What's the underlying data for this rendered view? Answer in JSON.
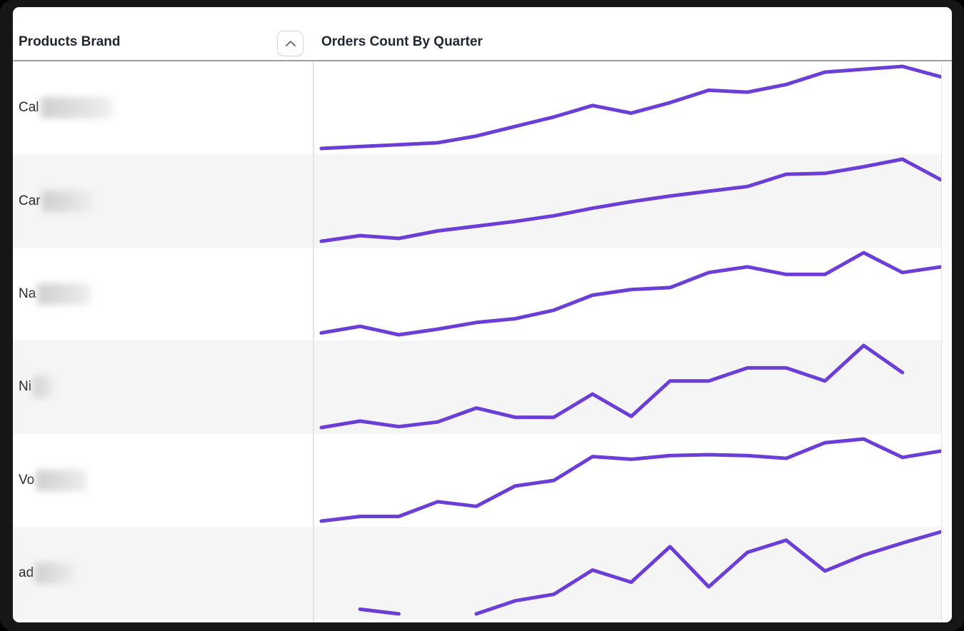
{
  "header": {
    "products_brand": "Products Brand",
    "orders_count": "Orders Count By Quarter",
    "sort_icon": "chevron-up-icon"
  },
  "table": {
    "rows": [
      {
        "brand_prefix": "Cal",
        "brand_redacted": true,
        "redaction_width": 100
      },
      {
        "brand_prefix": "Car",
        "brand_redacted": true,
        "redaction_width": 70
      },
      {
        "brand_prefix": "Na",
        "brand_redacted": true,
        "redaction_width": 75
      },
      {
        "brand_prefix": "Ni",
        "brand_redacted": true,
        "redaction_width": 30
      },
      {
        "brand_prefix": "Vo",
        "brand_redacted": true,
        "redaction_width": 72
      },
      {
        "brand_prefix": "ad",
        "brand_redacted": true,
        "redaction_width": 56
      }
    ]
  },
  "colors": {
    "sparkline": "#6c3ed8",
    "row_stripe": "#f5f5f6",
    "header_border": "#99a0a8",
    "column_divider": "#e3e3e6",
    "header_text": "#1f2733",
    "body_text": "#26282d",
    "frame": "#161616"
  },
  "chart_data": {
    "type": "line",
    "title": "Orders Count By Quarter",
    "sparkline": true,
    "x_axis": "quarter index (1-17, tick labels not shown on screen)",
    "y_axis": "orders count (values estimated from line heights, no scale shown)",
    "grid": false,
    "legend": false,
    "series": [
      {
        "name": "Cal… (redacted)",
        "values": [
          7,
          9,
          11,
          13,
          20,
          30,
          40,
          52,
          44,
          55,
          68,
          66,
          74,
          87,
          90,
          93,
          82
        ]
      },
      {
        "name": "Car… (redacted)",
        "values": [
          5,
          11,
          8,
          16,
          21,
          26,
          32,
          40,
          47,
          53,
          58,
          63,
          76,
          77,
          84,
          92,
          70
        ]
      },
      {
        "name": "Na… (redacted)",
        "values": [
          8,
          15,
          6,
          12,
          19,
          23,
          32,
          48,
          54,
          56,
          72,
          78,
          70,
          70,
          93,
          72,
          78
        ]
      },
      {
        "name": "Ni… (redacted)",
        "values": [
          5,
          12,
          6,
          11,
          26,
          16,
          16,
          41,
          17,
          55,
          55,
          69,
          69,
          55,
          93,
          64,
          null
        ]
      },
      {
        "name": "Vo… (redacted)",
        "values": [
          5,
          10,
          10,
          26,
          21,
          43,
          49,
          75,
          72,
          76,
          77,
          76,
          73,
          90,
          94,
          74,
          81
        ]
      },
      {
        "name": "ad… (redacted)",
        "values": [
          null,
          9,
          4,
          null,
          4,
          18,
          25,
          51,
          38,
          76,
          33,
          70,
          83,
          50,
          67,
          80,
          92
        ]
      }
    ]
  }
}
